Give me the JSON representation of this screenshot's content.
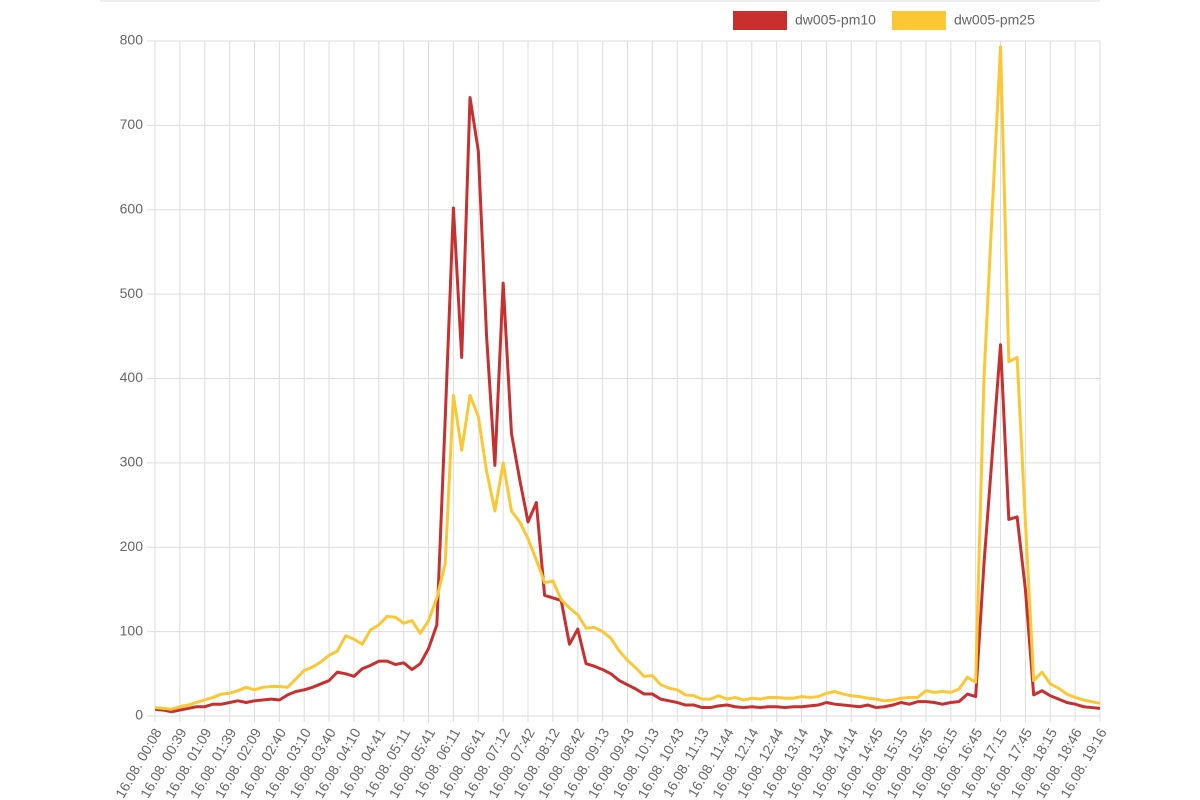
{
  "chart_data": {
    "type": "line",
    "categories": [
      "16.08. 00:08",
      null,
      null,
      "16.08. 00:39",
      null,
      null,
      "16.08. 01:09",
      null,
      null,
      "16.08. 01:39",
      null,
      null,
      "16.08. 02:09",
      null,
      null,
      "16.08. 02:40",
      null,
      null,
      "16.08. 03:10",
      null,
      null,
      "16.08. 03:40",
      null,
      null,
      "16.08. 04:10",
      null,
      null,
      "16.08. 04:41",
      null,
      null,
      "16.08. 05:11",
      null,
      null,
      "16.08. 05:41",
      null,
      null,
      "16.08. 06:11",
      null,
      null,
      "16.08. 06:41",
      null,
      null,
      "16.08. 07:12",
      null,
      null,
      "16.08. 07:42",
      null,
      null,
      "16.08. 08:12",
      null,
      null,
      "16.08. 08:42",
      null,
      null,
      "16.08. 09:13",
      null,
      null,
      "16.08. 09:43",
      null,
      null,
      "16.08. 10:13",
      null,
      null,
      "16.08. 10:43",
      null,
      null,
      "16.08. 11:13",
      null,
      null,
      "16.08. 11:44",
      null,
      null,
      "16.08. 12:14",
      null,
      null,
      "16.08. 12:44",
      null,
      null,
      "16.08. 13:14",
      null,
      null,
      "16.08. 13:44",
      null,
      null,
      "16.08. 14:14",
      null,
      null,
      "16.08. 14:45",
      null,
      null,
      "16.08. 15:15",
      null,
      null,
      "16.08. 15:45",
      null,
      null,
      "16.08. 16:15",
      null,
      null,
      "16.08. 16:45",
      null,
      null,
      "16.08. 17:15",
      null,
      null,
      "16.08. 17:45",
      null,
      null,
      "16.08. 18:15",
      null,
      null,
      "16.08. 18:46",
      null,
      null,
      "16.08. 19:16"
    ],
    "series": [
      {
        "name": "dw005-pm10",
        "color": "#c8302f",
        "values": [
          8,
          7,
          5,
          7,
          9,
          11,
          11,
          14,
          14,
          16,
          18,
          16,
          18,
          19,
          20,
          19,
          25,
          29,
          31,
          34,
          38,
          42,
          52,
          50,
          47,
          56,
          60,
          65,
          65,
          61,
          63,
          55,
          62,
          80,
          108,
          350,
          602,
          425,
          733,
          670,
          450,
          297,
          513,
          335,
          280,
          230,
          253,
          143,
          140,
          137,
          85,
          103,
          62,
          59,
          55,
          50,
          42,
          37,
          32,
          26,
          26,
          20,
          18,
          16,
          13,
          13,
          10,
          10,
          12,
          13,
          11,
          10,
          11,
          10,
          11,
          11,
          10,
          11,
          11,
          12,
          13,
          16,
          14,
          13,
          12,
          11,
          13,
          10,
          11,
          13,
          16,
          14,
          17,
          17,
          16,
          14,
          16,
          17,
          26,
          23,
          180,
          310,
          440,
          233,
          236,
          150,
          25,
          30,
          24,
          20,
          16,
          14,
          11,
          10,
          9
        ]
      },
      {
        "name": "dw005-pm25",
        "color": "#fcc735",
        "values": [
          10,
          9,
          8,
          11,
          13,
          16,
          19,
          22,
          26,
          27,
          30,
          34,
          31,
          34,
          35,
          35,
          34,
          44,
          54,
          58,
          64,
          72,
          77,
          95,
          91,
          85,
          102,
          108,
          118,
          117,
          110,
          113,
          98,
          113,
          140,
          180,
          380,
          315,
          380,
          355,
          290,
          243,
          300,
          243,
          230,
          210,
          185,
          158,
          160,
          138,
          128,
          120,
          104,
          105,
          100,
          92,
          77,
          66,
          57,
          47,
          48,
          37,
          33,
          31,
          25,
          24,
          20,
          20,
          24,
          20,
          22,
          19,
          21,
          20,
          22,
          22,
          21,
          21,
          23,
          22,
          23,
          27,
          29,
          26,
          24,
          23,
          21,
          20,
          18,
          19,
          21,
          22,
          22,
          30,
          28,
          29,
          28,
          32,
          46,
          40,
          400,
          600,
          793,
          420,
          425,
          230,
          42,
          52,
          38,
          33,
          26,
          22,
          19,
          17,
          15
        ]
      }
    ],
    "ylim": [
      0,
      800
    ],
    "yticks": [
      0,
      100,
      200,
      300,
      400,
      500,
      600,
      700,
      800
    ],
    "grid": true,
    "legend": "top"
  }
}
